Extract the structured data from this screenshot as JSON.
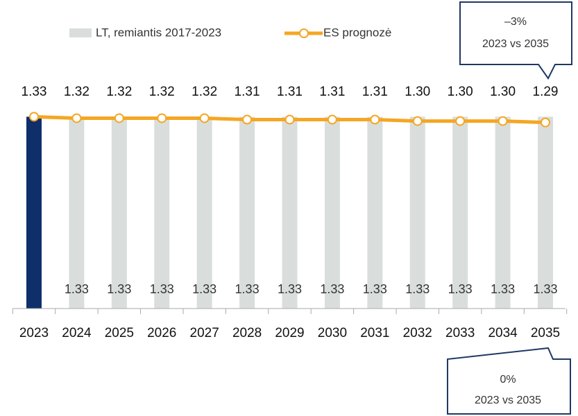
{
  "chart_data": {
    "type": "bar",
    "categories": [
      "2023",
      "2024",
      "2025",
      "2026",
      "2027",
      "2028",
      "2029",
      "2030",
      "2031",
      "2032",
      "2033",
      "2034",
      "2035"
    ],
    "series": [
      {
        "name": "LT, remiantis 2017-2023",
        "type": "bar",
        "color": "#d9dedd",
        "show_labels": true,
        "values": [
          null,
          1.33,
          1.33,
          1.33,
          1.33,
          1.33,
          1.33,
          1.33,
          1.33,
          1.33,
          1.33,
          1.33,
          1.33
        ]
      },
      {
        "type": "bar",
        "color": "#0f2f6b",
        "values": [
          1.33,
          null,
          null,
          null,
          null,
          null,
          null,
          null,
          null,
          null,
          null,
          null,
          null
        ]
      },
      {
        "name": "ES prognozė",
        "type": "line",
        "color": "#f5a623",
        "show_labels": true,
        "values": [
          1.33,
          1.32,
          1.32,
          1.32,
          1.32,
          1.31,
          1.31,
          1.31,
          1.31,
          1.3,
          1.3,
          1.3,
          1.29
        ],
        "value_labels": [
          "1.33",
          "1.32",
          "1.32",
          "1.32",
          "1.32",
          "1.31",
          "1.31",
          "1.31",
          "1.31",
          "1.30",
          "1.30",
          "1.30",
          "1.29"
        ]
      }
    ],
    "ylim": [
      0,
      1.5
    ],
    "annotations": [
      {
        "lines": [
          "–3%",
          "2023 vs 2035"
        ]
      },
      {
        "lines": [
          "0%",
          "2023 vs 2035"
        ]
      }
    ]
  }
}
